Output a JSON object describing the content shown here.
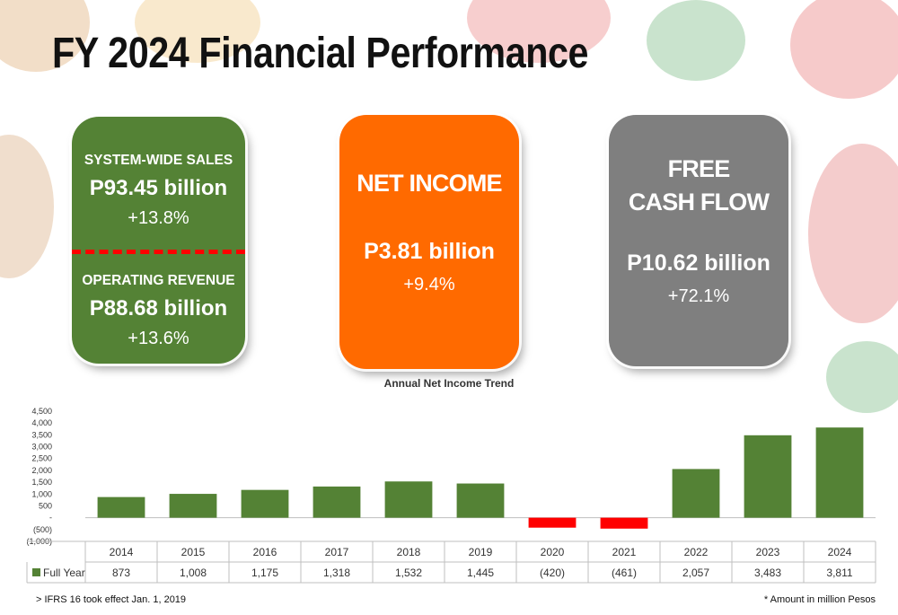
{
  "page": {
    "title": "FY 2024 Financial Performance"
  },
  "cards": {
    "green": {
      "label1": "SYSTEM-WIDE SALES",
      "value1": "P93.45 billion",
      "change1": "+13.8%",
      "label2": "OPERATING REVENUE",
      "value2": "P88.68 billion",
      "change2": "+13.6%",
      "color": "#548235"
    },
    "orange": {
      "label": "NET INCOME",
      "value": "P3.81 billion",
      "change": "+9.4%",
      "color": "#ff6a00"
    },
    "gray": {
      "label_line1": "FREE",
      "label_line2": "CASH FLOW",
      "value": "P10.62 billion",
      "change": "+72.1%",
      "color": "#7f7f7f"
    }
  },
  "chart_data": {
    "type": "bar",
    "title": "Annual Net Income Trend",
    "categories": [
      "2014",
      "2015",
      "2016",
      "2017",
      "2018",
      "2019",
      "2020",
      "2021",
      "2022",
      "2023",
      "2024"
    ],
    "series": [
      {
        "name": "Full Year",
        "values": [
          873,
          1008,
          1175,
          1318,
          1532,
          1445,
          -420,
          -461,
          2057,
          3483,
          3811
        ],
        "display": [
          "873",
          "1,008",
          "1,175",
          "1,318",
          "1,532",
          "1,445",
          "(420)",
          "(461)",
          "2,057",
          "3,483",
          "3,811"
        ],
        "color": "#548235",
        "negative_color": "#ff0000"
      }
    ],
    "ylim": [
      -1000,
      4500
    ],
    "yticks": [
      -1000,
      -500,
      0,
      500,
      1000,
      1500,
      2000,
      2500,
      3000,
      3500,
      4000,
      4500
    ],
    "ytick_labels": [
      "(1,000)",
      "(500)",
      "-",
      "500",
      "1,000",
      "1,500",
      "2,000",
      "2,500",
      "3,000",
      "3,500",
      "4,000",
      "4,500"
    ],
    "grid": false,
    "legend": "data-table"
  },
  "footnotes": {
    "left": "> IFRS 16 took effect Jan. 1, 2019",
    "right": "* Amount in million Pesos"
  }
}
